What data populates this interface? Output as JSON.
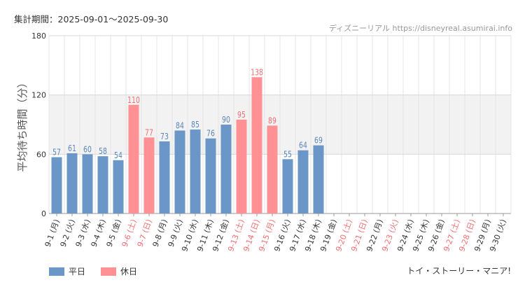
{
  "header": {
    "period": "集計期間：2025-09-01～2025-09-30",
    "credit": "ディズニーリアル https://disneyreal.asumirai.info"
  },
  "footer": {
    "attraction": "トイ・ストーリー・マニア!"
  },
  "colors": {
    "weekday": "#6a97c8",
    "holiday": "#ff9194",
    "weekday_label": "#5b86b8",
    "holiday_label": "#ef6f73",
    "band": "#f2f2f2",
    "grid": "#e4e4e4"
  },
  "chart_data": {
    "type": "bar",
    "ylabel": "平均待ち時間（分）",
    "ylim": [
      0,
      180
    ],
    "yticks": [
      0,
      60,
      120,
      180
    ],
    "band": [
      60,
      120
    ],
    "grid": true,
    "legend_position": "bottom-left",
    "series": [
      {
        "name": "平日",
        "color": "#6a97c8"
      },
      {
        "name": "休日",
        "color": "#ff9194"
      }
    ],
    "categories": [
      "9-1 (月)",
      "9-2 (火)",
      "9-3 (水)",
      "9-4 (木)",
      "9-5 (金)",
      "9-6 (土)",
      "9-7 (日)",
      "9-8 (月)",
      "9-9 (火)",
      "9-10 (水)",
      "9-11 (木)",
      "9-12 (金)",
      "9-13 (土)",
      "9-14 (日)",
      "9-15 (月)",
      "9-16 (火)",
      "9-17 (水)",
      "9-18 (木)",
      "9-19 (金)",
      "9-20 (土)",
      "9-21 (日)",
      "9-22 (月)",
      "9-23 (火)",
      "9-24 (水)",
      "9-25 (木)",
      "9-26 (金)",
      "9-27 (土)",
      "9-28 (日)",
      "9-29 (月)",
      "9-30 (火)"
    ],
    "values": [
      57,
      61,
      60,
      58,
      54,
      110,
      77,
      73,
      84,
      85,
      76,
      90,
      95,
      138,
      89,
      55,
      64,
      69,
      null,
      null,
      null,
      null,
      null,
      null,
      null,
      null,
      null,
      null,
      null,
      null
    ],
    "holiday": [
      false,
      false,
      false,
      false,
      false,
      true,
      true,
      false,
      false,
      false,
      false,
      false,
      true,
      true,
      true,
      false,
      false,
      false,
      false,
      true,
      true,
      false,
      true,
      false,
      false,
      false,
      true,
      true,
      false,
      false
    ]
  }
}
